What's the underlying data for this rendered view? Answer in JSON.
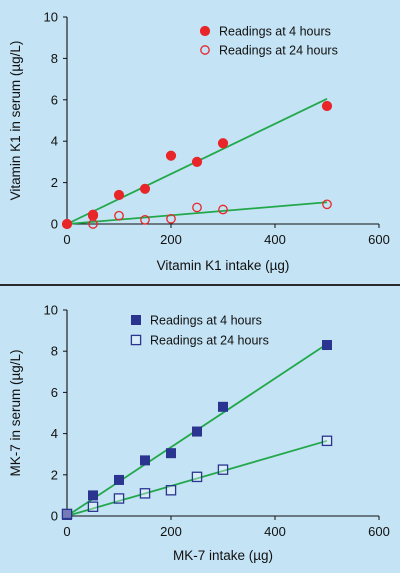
{
  "chart_data": [
    {
      "type": "scatter",
      "xlabel": "Vitamin K1 intake (µg)",
      "ylabel": "Vitamin K1 in serum (µg/L)",
      "xlim": [
        0,
        600
      ],
      "ylim": [
        0,
        10
      ],
      "xticks": [
        "0",
        "200",
        "400",
        "600"
      ],
      "yticks": [
        "0",
        "2",
        "4",
        "6",
        "8",
        "10"
      ],
      "legend_position": "top-right",
      "grid": false,
      "series": [
        {
          "name": "Readings at 4 hours",
          "marker": "circle-filled",
          "color": "#e8262a",
          "x": [
            0,
            50,
            50,
            100,
            150,
            200,
            250,
            300,
            500
          ],
          "y": [
            0,
            0.45,
            0.4,
            1.4,
            1.7,
            3.3,
            3.0,
            3.9,
            5.7
          ],
          "fit": [
            [
              0,
              0
            ],
            [
              500,
              6.05
            ]
          ]
        },
        {
          "name": "Readings at 24 hours",
          "marker": "circle-open",
          "color": "#e8262a",
          "x": [
            0,
            50,
            100,
            150,
            200,
            250,
            300,
            500
          ],
          "y": [
            0,
            0,
            0.4,
            0.2,
            0.25,
            0.8,
            0.7,
            0.95
          ],
          "fit": [
            [
              0,
              0
            ],
            [
              500,
              1.05
            ]
          ]
        }
      ],
      "line_color": "#22a84a"
    },
    {
      "type": "scatter",
      "xlabel": "MK-7 intake (µg)",
      "ylabel": "MK-7 in serum (µg/L)",
      "xlim": [
        0,
        600
      ],
      "ylim": [
        0,
        10
      ],
      "xticks": [
        "0",
        "200",
        "400",
        "600"
      ],
      "yticks": [
        "0",
        "2",
        "4",
        "6",
        "8",
        "10"
      ],
      "legend_position": "top-left",
      "grid": false,
      "series": [
        {
          "name": "Readings at 4 hours",
          "marker": "square-filled",
          "color": "#2a3590",
          "x": [
            0,
            50,
            100,
            150,
            200,
            250,
            300,
            500
          ],
          "y": [
            0.05,
            1.0,
            1.75,
            2.7,
            3.05,
            4.1,
            5.3,
            8.3
          ],
          "fit": [
            [
              0,
              0
            ],
            [
              500,
              8.35
            ]
          ]
        },
        {
          "name": "Readings at 24 hours",
          "marker": "square-open",
          "color": "#2a3590",
          "x": [
            0,
            50,
            100,
            150,
            200,
            250,
            300,
            500
          ],
          "y": [
            0.1,
            0.45,
            0.85,
            1.1,
            1.25,
            1.9,
            2.25,
            3.65
          ],
          "fit": [
            [
              0,
              0
            ],
            [
              500,
              3.65
            ]
          ]
        }
      ],
      "line_color": "#22a84a"
    }
  ]
}
